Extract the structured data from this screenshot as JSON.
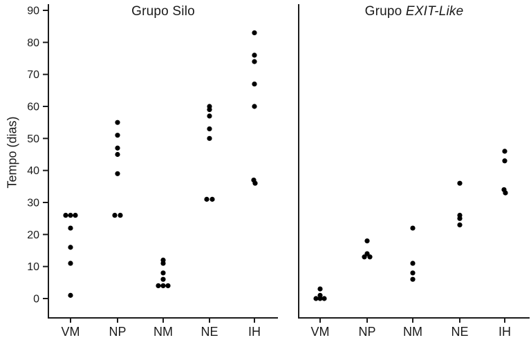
{
  "figure": {
    "background": "#ffffff"
  },
  "chart_data": {
    "type": "scatter",
    "subtype": "dot-strip-plot",
    "ylabel": "Tempo (dias)",
    "ylim": [
      0,
      90
    ],
    "yticks": [
      90,
      80,
      70,
      60,
      50,
      40,
      30,
      20,
      10,
      0
    ],
    "categories": [
      "VM",
      "NP",
      "NM",
      "NE",
      "IH"
    ],
    "grid": false,
    "legend": "none",
    "dot_color": "#000000",
    "axis_color": "#1a1a1a",
    "panels": [
      {
        "title_regular": "Grupo Silo",
        "title_italic": "",
        "groups": [
          {
            "category": "VM",
            "values": [
              26,
              26,
              26,
              22,
              16,
              11,
              1
            ],
            "dx": [
              -7,
              0,
              7,
              0,
              0,
              0,
              0
            ]
          },
          {
            "category": "NP",
            "values": [
              55,
              51,
              47,
              45,
              39,
              26,
              26
            ],
            "dx": [
              0,
              0,
              0,
              0,
              0,
              -4,
              4
            ]
          },
          {
            "category": "NM",
            "values": [
              12,
              11,
              8,
              6,
              4,
              4,
              4
            ],
            "dx": [
              0,
              0,
              0,
              0,
              -7,
              0,
              7
            ]
          },
          {
            "category": "NE",
            "values": [
              60,
              59,
              57,
              53,
              50,
              31,
              31
            ],
            "dx": [
              0,
              0,
              0,
              0,
              0,
              -4,
              4
            ]
          },
          {
            "category": "IH",
            "values": [
              83,
              76,
              74,
              67,
              60,
              37,
              36
            ],
            "dx": [
              0,
              0,
              0,
              0,
              0,
              -1,
              1
            ]
          }
        ]
      },
      {
        "title_regular": "Grupo ",
        "title_italic": "EXIT-Like",
        "groups": [
          {
            "category": "VM",
            "values": [
              3,
              1,
              0,
              0,
              0
            ],
            "dx": [
              0,
              0,
              -6,
              0,
              6
            ]
          },
          {
            "category": "NP",
            "values": [
              18,
              14,
              13,
              13
            ],
            "dx": [
              0,
              0,
              -4,
              4
            ]
          },
          {
            "category": "NM",
            "values": [
              22,
              11,
              8,
              6
            ],
            "dx": [
              0,
              0,
              0,
              0
            ]
          },
          {
            "category": "NE",
            "values": [
              36,
              26,
              25,
              23
            ],
            "dx": [
              0,
              0,
              0,
              0
            ]
          },
          {
            "category": "IH",
            "values": [
              46,
              43,
              34,
              33
            ],
            "dx": [
              0,
              0,
              -1,
              1
            ]
          }
        ]
      }
    ]
  }
}
